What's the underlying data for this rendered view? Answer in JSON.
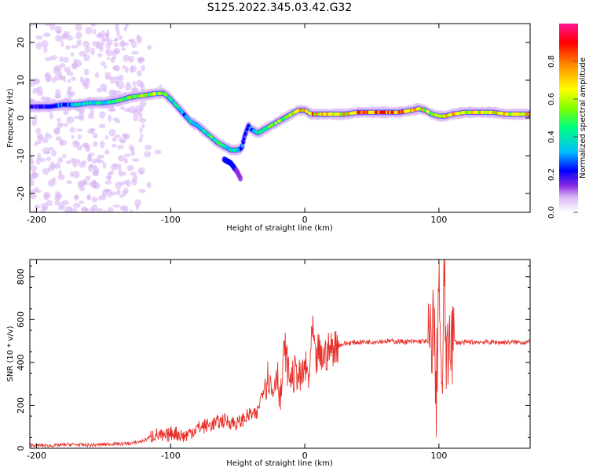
{
  "figure_title": "S125.2022.345.03.42.G32",
  "chart_data": [
    {
      "type": "heatmap",
      "title": "S125.2022.345.03.42.G32",
      "xlabel": "Height of straight line (km)",
      "ylabel": "Frequency (Hz)",
      "xlim": [
        -205,
        168
      ],
      "ylim": [
        -25,
        25
      ],
      "x_ticks": [
        -200,
        -100,
        0,
        100
      ],
      "y_ticks": [
        -20,
        -10,
        0,
        10,
        20
      ],
      "colorbar": {
        "label": "Normalized spectral amplitude",
        "range": [
          0,
          1
        ],
        "ticks": [
          "0.0",
          "0.2",
          "0.4",
          "0.6",
          "0.8"
        ],
        "tick_values": [
          0.0,
          0.2,
          0.4,
          0.6,
          0.8
        ],
        "colors": [
          "#ffffff",
          "#d9b8f5",
          "#8a2be2",
          "#0000ff",
          "#00bfff",
          "#00ff7f",
          "#7fff00",
          "#ffff00",
          "#ff8c00",
          "#ff0000",
          "#ff1493"
        ]
      },
      "ridge": {
        "x": [
          -200,
          -190,
          -180,
          -170,
          -160,
          -150,
          -140,
          -130,
          -120,
          -110,
          -105,
          -100,
          -95,
          -90,
          -85,
          -80,
          -75,
          -70,
          -65,
          -60,
          -55,
          -50,
          -47,
          -45,
          -42,
          -40,
          -35,
          -30,
          -25,
          -20,
          -15,
          -10,
          -5,
          0,
          5,
          10,
          20,
          30,
          40,
          50,
          60,
          70,
          80,
          85,
          90,
          95,
          100,
          105,
          110,
          120,
          130,
          140,
          150,
          160,
          168
        ],
        "y": [
          3,
          3,
          3.5,
          3.5,
          4,
          4,
          4.5,
          5.5,
          6,
          6.5,
          6.5,
          5,
          3,
          1,
          -1,
          -2,
          -3.5,
          -5,
          -6.5,
          -7.5,
          -8.5,
          -8.5,
          -8,
          -5,
          -2,
          -3,
          -4,
          -3,
          -2,
          -1,
          0,
          1,
          2,
          2,
          1,
          1,
          1,
          1,
          1.5,
          1.5,
          1.5,
          1.5,
          2,
          2.5,
          2,
          1,
          0.5,
          0.5,
          1,
          1.5,
          1.5,
          1.5,
          1,
          1,
          1
        ],
        "amplitude": [
          0.3,
          0.35,
          0.4,
          0.45,
          0.5,
          0.5,
          0.55,
          0.6,
          0.65,
          0.7,
          0.6,
          0.5,
          0.5,
          0.45,
          0.45,
          0.5,
          0.5,
          0.55,
          0.55,
          0.55,
          0.5,
          0.45,
          0.4,
          0.35,
          0.35,
          0.4,
          0.5,
          0.55,
          0.6,
          0.65,
          0.65,
          0.7,
          0.75,
          0.8,
          0.85,
          0.85,
          0.8,
          0.8,
          0.85,
          0.9,
          0.9,
          0.85,
          0.8,
          0.75,
          0.7,
          0.6,
          0.65,
          0.8,
          0.8,
          0.8,
          0.8,
          0.75,
          0.75,
          0.75,
          0.75
        ]
      },
      "branch": {
        "x": [
          -60,
          -55,
          -52,
          -50,
          -48
        ],
        "y": [
          -11,
          -12,
          -13.5,
          -14.5,
          -16
        ],
        "amplitude": [
          0.3,
          0.3,
          0.25,
          0.2,
          0.15
        ]
      },
      "noise_region_x": [
        -205,
        -120
      ]
    },
    {
      "type": "line",
      "xlabel": "Height of straight line (km)",
      "ylabel": "SNR (10 * v/v)",
      "xlim": [
        -205,
        168
      ],
      "ylim": [
        0,
        880
      ],
      "x_ticks": [
        -200,
        -100,
        0,
        100
      ],
      "y_ticks": [
        0,
        200,
        400,
        600,
        800
      ],
      "grid": false,
      "line_color": "#e8302a",
      "series": [
        {
          "x": [
            -205,
            -190,
            -175,
            -160,
            -145,
            -130,
            -120,
            -112,
            -105,
            -98,
            -90,
            -80,
            -70,
            -60,
            -50,
            -44,
            -40,
            -36,
            -33,
            -30,
            -27,
            -24,
            -21,
            -18,
            -15,
            -12,
            -9,
            -6,
            -3,
            0,
            3,
            6,
            8,
            10,
            12,
            14,
            16,
            18,
            20,
            22,
            25,
            30,
            35,
            40,
            50,
            60,
            70,
            80,
            90,
            94,
            96,
            98,
            100,
            102,
            104,
            106,
            108,
            110,
            115,
            130,
            145,
            168
          ],
          "values": [
            15,
            12,
            18,
            14,
            20,
            22,
            35,
            65,
            50,
            75,
            55,
            95,
            110,
            130,
            115,
            145,
            160,
            150,
            230,
            300,
            340,
            250,
            380,
            220,
            480,
            340,
            330,
            360,
            310,
            380,
            320,
            560,
            380,
            460,
            410,
            430,
            440,
            455,
            465,
            475,
            480,
            488,
            492,
            495,
            497,
            500,
            498,
            496,
            500,
            480,
            620,
            200,
            860,
            130,
            850,
            300,
            600,
            500,
            492,
            496,
            494,
            495
          ]
        }
      ]
    }
  ]
}
